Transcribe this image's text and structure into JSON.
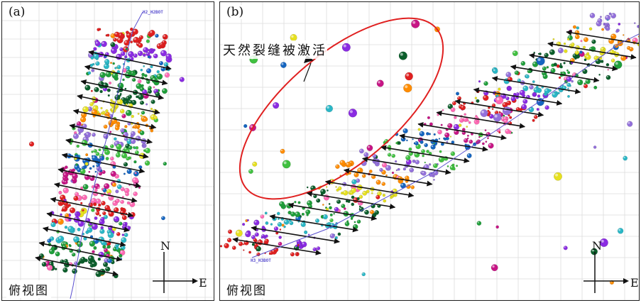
{
  "panels": [
    {
      "label": "(a)",
      "view_label": "俯视图",
      "compass": {
        "north": "N",
        "east": "E"
      },
      "well_label": "H2_H2BOT"
    },
    {
      "label": "(b)",
      "view_label": "俯视图",
      "compass": {
        "north": "N",
        "east": "E"
      },
      "well_label": "H3_H3BOT",
      "annotation": "天然裂缝被激活"
    }
  ],
  "colors": {
    "event_palette": [
      "#e02020",
      "#8a2be2",
      "#2ab7c6",
      "#1f9e3a",
      "#0b5e2b",
      "#e6e020",
      "#ff8c00",
      "#9370db",
      "#40c040",
      "#1565c0",
      "#c71585",
      "#ff69b4"
    ],
    "arrow": "#111111",
    "ellipse": "#e02020",
    "well": "#5a4fcf"
  }
}
